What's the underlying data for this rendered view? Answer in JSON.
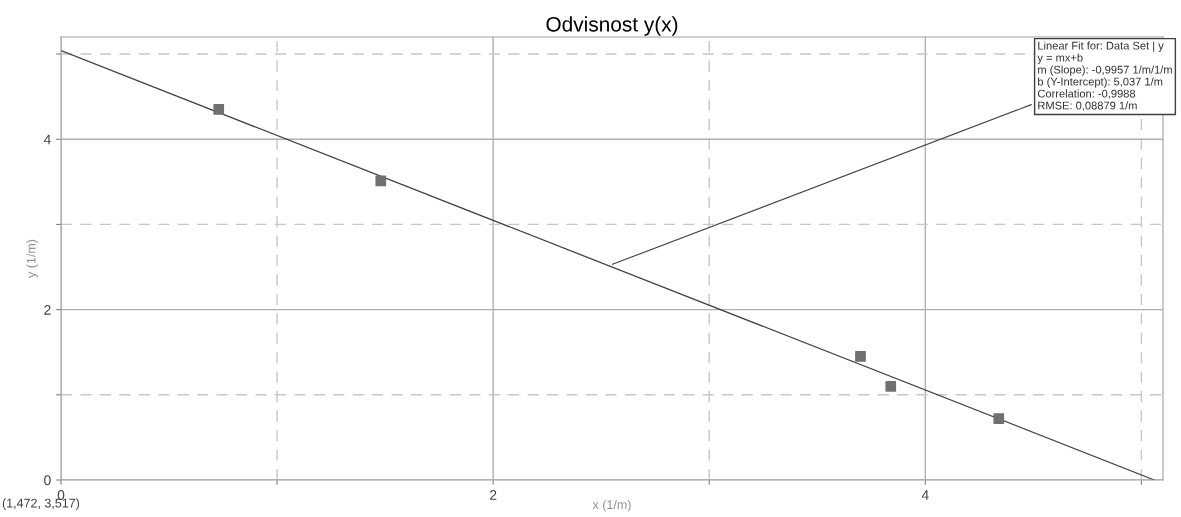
{
  "chart_data": {
    "type": "scatter",
    "title": "Odvisnost y(x)",
    "xlabel": "x (1/m)",
    "ylabel": "y (1/m)",
    "x": [
      0.73,
      1.48,
      3.7,
      3.84,
      4.34
    ],
    "series": [
      {
        "color": "#707070",
        "values": [
          4.35,
          3.51,
          1.45,
          1.1,
          0.72
        ],
        "marker": "square"
      },
      {
        "type": "line",
        "color": "#404040",
        "x": [
          0,
          5.06
        ],
        "values": [
          5.04,
          0.0
        ],
        "marker": "none",
        "line_style": "solid"
      }
    ],
    "xlim": [
      0,
      5.1
    ],
    "ylim": [
      0,
      5.2
    ],
    "xticks": [
      0,
      {
        "value": 1,
        "label": null
      },
      2,
      {
        "value": 3,
        "label": null
      },
      4,
      {
        "value": 5,
        "label": null
      }
    ],
    "yticks": [
      0,
      {
        "value": 1,
        "label": null
      },
      2,
      {
        "value": 3,
        "label": null
      },
      4,
      {
        "value": 5,
        "label": null
      }
    ],
    "grid": true,
    "annotations": [
      {
        "text": "Linear Fit for: Data Set | y\ny = mx+b\nm (Slope): -0,9957 1/m/1/m\nb (Y-Intercept): 5,037 1/m\nCorrelation: -0,9988\nRMSE: 0,08879 1/m",
        "x": 2.54,
        "y": 2.52
      },
      "(1,472, 3,517)"
    ]
  }
}
